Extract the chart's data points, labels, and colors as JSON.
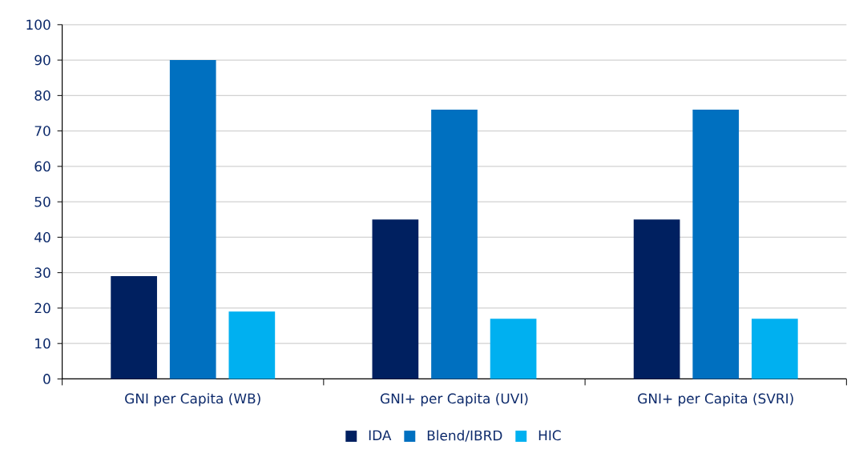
{
  "chart_data": {
    "type": "bar",
    "categories": [
      "GNI per Capita (WB)",
      "GNI+ per Capita (UVI)",
      "GNI+ per Capita (SVRI)"
    ],
    "series": [
      {
        "name": "IDA",
        "color": "#002060",
        "values": [
          29,
          45,
          45
        ]
      },
      {
        "name": "Blend/IBRD",
        "color": "#0070c0",
        "values": [
          90,
          76,
          76
        ]
      },
      {
        "name": "HIC",
        "color": "#00b0f0",
        "values": [
          19,
          17,
          17
        ]
      }
    ],
    "ylim": [
      0,
      100
    ],
    "yticks": [
      0,
      10,
      20,
      30,
      40,
      50,
      60,
      70,
      80,
      90,
      100
    ],
    "grid": "y",
    "legend": "bottom"
  }
}
